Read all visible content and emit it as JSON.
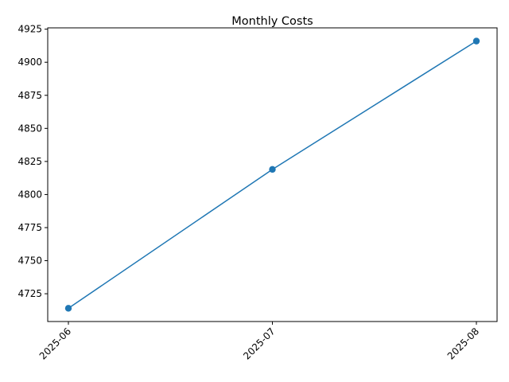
{
  "chart_data": {
    "type": "line",
    "title": "Monthly Costs",
    "xlabel": "",
    "ylabel": "",
    "categories": [
      "2025-06",
      "2025-07",
      "2025-08"
    ],
    "series": [
      {
        "values": [
          4714,
          4819,
          4916
        ],
        "color": "#1f77b4",
        "marker": "circle"
      }
    ],
    "ylim": [
      4704,
      4926
    ],
    "yticks": [
      4725,
      4750,
      4775,
      4800,
      4825,
      4850,
      4875,
      4900,
      4925
    ],
    "grid": false,
    "legend": "none"
  }
}
